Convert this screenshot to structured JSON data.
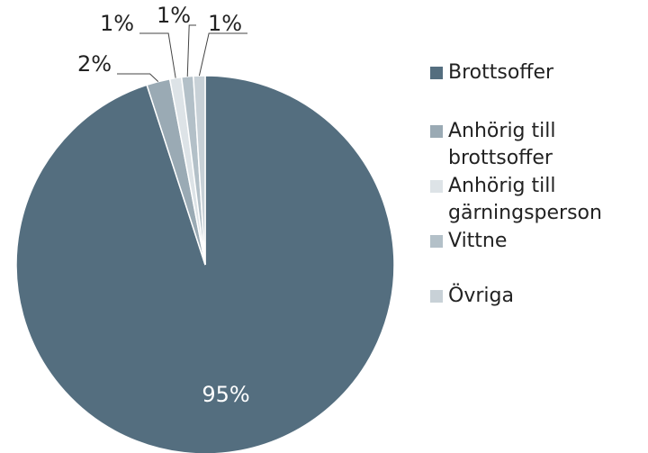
{
  "chart_data": {
    "type": "pie",
    "categories": [
      "Brottsoffer",
      "Anhörig till brottsoffer",
      "Anhörig till gärningsperson",
      "Vittne",
      "Övriga"
    ],
    "values": [
      95,
      2,
      1,
      1,
      1
    ],
    "value_labels": [
      "95%",
      "2%",
      "1%",
      "1%",
      "1%"
    ],
    "colors": [
      "#546e7f",
      "#9aaab4",
      "#dde3e7",
      "#b3c0c8",
      "#c8d1d7"
    ]
  }
}
